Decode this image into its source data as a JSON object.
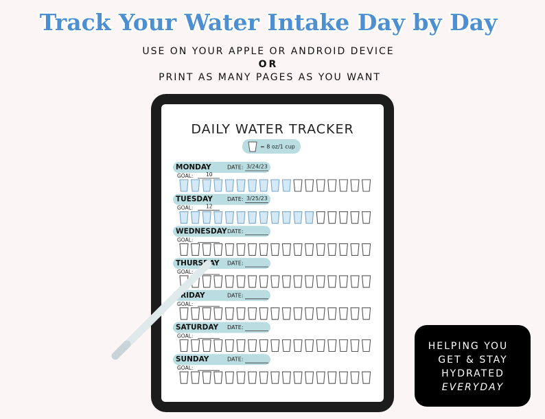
{
  "header": {
    "title": "Track Your Water Intake Day by Day",
    "lines": [
      "USE ON YOUR APPLE OR ANDROID DEVICE",
      "OR",
      "PRINT AS MANY PAGES AS YOU WANT"
    ]
  },
  "tracker": {
    "title": "DAILY WATER TRACKER",
    "legend": "= 8 oz/1 cup",
    "date_label": "DATE:",
    "goal_label": "GOAL:",
    "cups_per_day": 17,
    "days": [
      {
        "name": "MONDAY",
        "date": "3/24/23",
        "goal": "10",
        "filled": 10
      },
      {
        "name": "TUESDAY",
        "date": "3/25/23",
        "goal": "12",
        "filled": 12
      },
      {
        "name": "WEDNESDAY",
        "filled": 0
      },
      {
        "name": "THURSDAY",
        "filled": 0
      },
      {
        "name": "FRIDAY",
        "filled": 0
      },
      {
        "name": "SATURDAY",
        "filled": 0
      },
      {
        "name": "SUNDAY",
        "filled": 0
      }
    ]
  },
  "badge": {
    "lines": [
      "HELPING YOU",
      "GET & STAY",
      "HYDRATED",
      "EVERYDAY"
    ]
  }
}
